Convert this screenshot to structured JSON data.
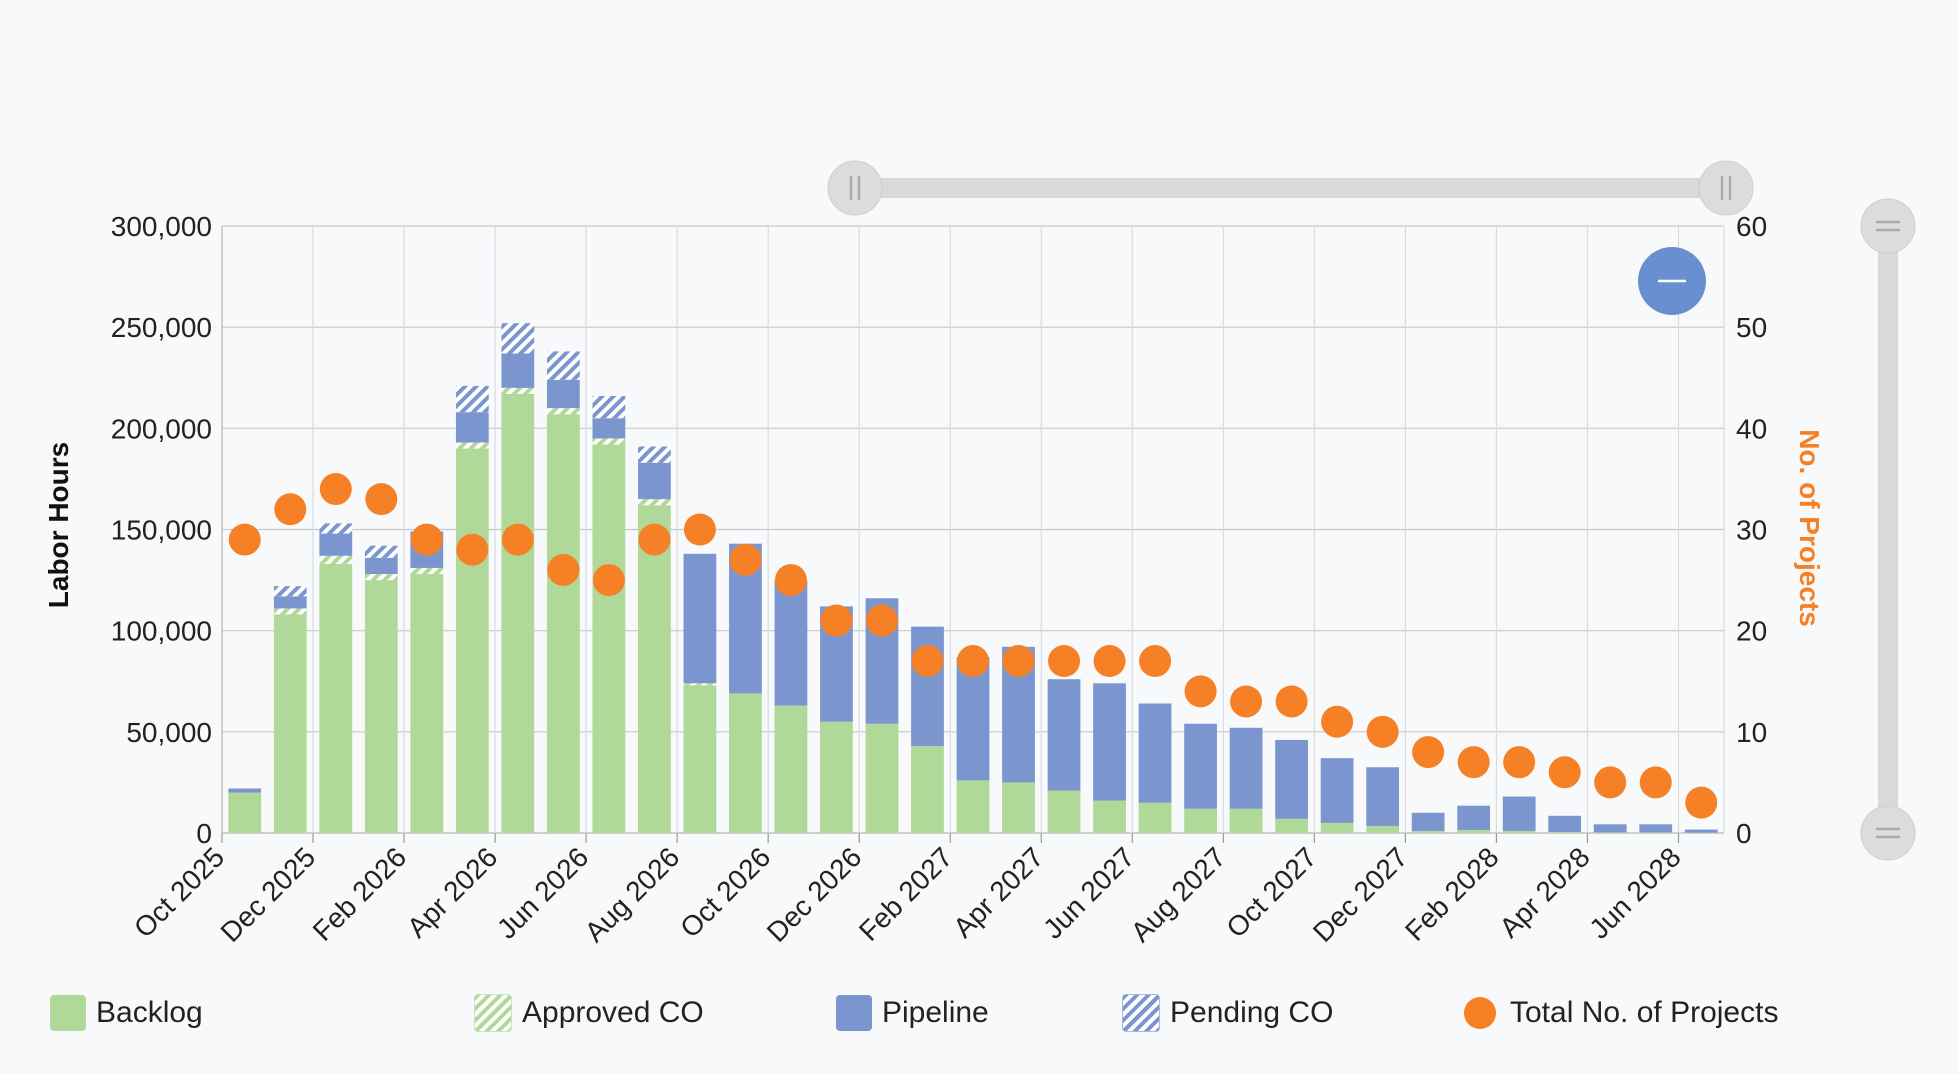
{
  "chart_data": {
    "type": "bar",
    "stacked": true,
    "title": "",
    "ylabel": "Labor Hours",
    "y2label": "No. of Projects",
    "ylim": [
      0,
      300000
    ],
    "y2lim": [
      0,
      60
    ],
    "yticks": [
      "0",
      "50,000",
      "100,000",
      "150,000",
      "200,000",
      "250,000",
      "300,000"
    ],
    "y2ticks": [
      "0",
      "10",
      "20",
      "30",
      "40",
      "50",
      "60"
    ],
    "categories": [
      "Oct 2025",
      "Nov 2025",
      "Dec 2025",
      "Jan 2026",
      "Feb 2026",
      "Mar 2026",
      "Apr 2026",
      "May 2026",
      "Jun 2026",
      "Jul 2026",
      "Aug 2026",
      "Sep 2026",
      "Oct 2026",
      "Nov 2026",
      "Dec 2026",
      "Jan 2027",
      "Feb 2027",
      "Mar 2027",
      "Apr 2027",
      "May 2027",
      "Jun 2027",
      "Jul 2027",
      "Aug 2027",
      "Sep 2027",
      "Oct 2027",
      "Nov 2027",
      "Dec 2027",
      "Jan 2028",
      "Feb 2028",
      "Mar 2028",
      "Apr 2028",
      "May 2028",
      "Jun 2028"
    ],
    "xtick_labels": [
      "Oct 2025",
      "Dec 2025",
      "Feb 2026",
      "Apr 2026",
      "Jun 2026",
      "Aug 2026",
      "Oct 2026",
      "Dec 2026",
      "Feb 2027",
      "Apr 2027",
      "Jun 2027",
      "Aug 2027",
      "Oct 2027",
      "Dec 2027",
      "Feb 2028",
      "Apr 2028",
      "Jun 2028"
    ],
    "series": [
      {
        "name": "Backlog",
        "color": "#b0d898",
        "axis": "left",
        "values": [
          20000,
          108000,
          133000,
          125000,
          128000,
          190000,
          217000,
          207000,
          192000,
          162000,
          73000,
          69000,
          63000,
          55000,
          54000,
          43000,
          26000,
          25000,
          21000,
          16000,
          15000,
          12000,
          12000,
          7000,
          5000,
          3500,
          1000,
          1500,
          1000,
          500,
          300,
          300,
          200
        ]
      },
      {
        "name": "Approved CO",
        "color": "#b0d898",
        "pattern": "hatch",
        "axis": "left",
        "values": [
          0,
          3000,
          4000,
          3000,
          3000,
          3000,
          3000,
          3000,
          3000,
          3000,
          1000,
          0,
          0,
          0,
          0,
          0,
          0,
          0,
          0,
          0,
          0,
          0,
          0,
          0,
          0,
          0,
          0,
          0,
          0,
          0,
          0,
          0,
          0
        ]
      },
      {
        "name": "Pipeline",
        "color": "#7b96cf",
        "axis": "left",
        "values": [
          2000,
          6000,
          11000,
          8000,
          18000,
          15000,
          17000,
          14000,
          10000,
          18000,
          64000,
          74000,
          62000,
          57000,
          62000,
          59000,
          61000,
          67000,
          55000,
          58000,
          49000,
          42000,
          40000,
          39000,
          32000,
          29000,
          9000,
          12000,
          17000,
          8000,
          4000,
          4000,
          1500
        ]
      },
      {
        "name": "Pending CO",
        "color": "#7b96cf",
        "pattern": "hatch",
        "axis": "left",
        "values": [
          0,
          5000,
          5000,
          6000,
          0,
          13000,
          15000,
          14000,
          11000,
          8000,
          0,
          0,
          0,
          0,
          0,
          0,
          0,
          0,
          0,
          0,
          0,
          0,
          0,
          0,
          0,
          0,
          0,
          0,
          0,
          0,
          0,
          0,
          0
        ]
      },
      {
        "name": "Total No. of Projects",
        "color": "#f58025",
        "type": "scatter",
        "axis": "right",
        "values": [
          29,
          32,
          34,
          33,
          29,
          28,
          29,
          26,
          25,
          29,
          30,
          27,
          25,
          21,
          21,
          17,
          17,
          17,
          17,
          17,
          17,
          14,
          13,
          13,
          11,
          10,
          8,
          7,
          7,
          6,
          5,
          5,
          3
        ]
      }
    ],
    "legend": "bottom"
  },
  "controls": {
    "zoom_out_icon": "minus-icon",
    "horizontal_scrollbar": "range-navigator",
    "vertical_scrollbar": "range-navigator"
  }
}
